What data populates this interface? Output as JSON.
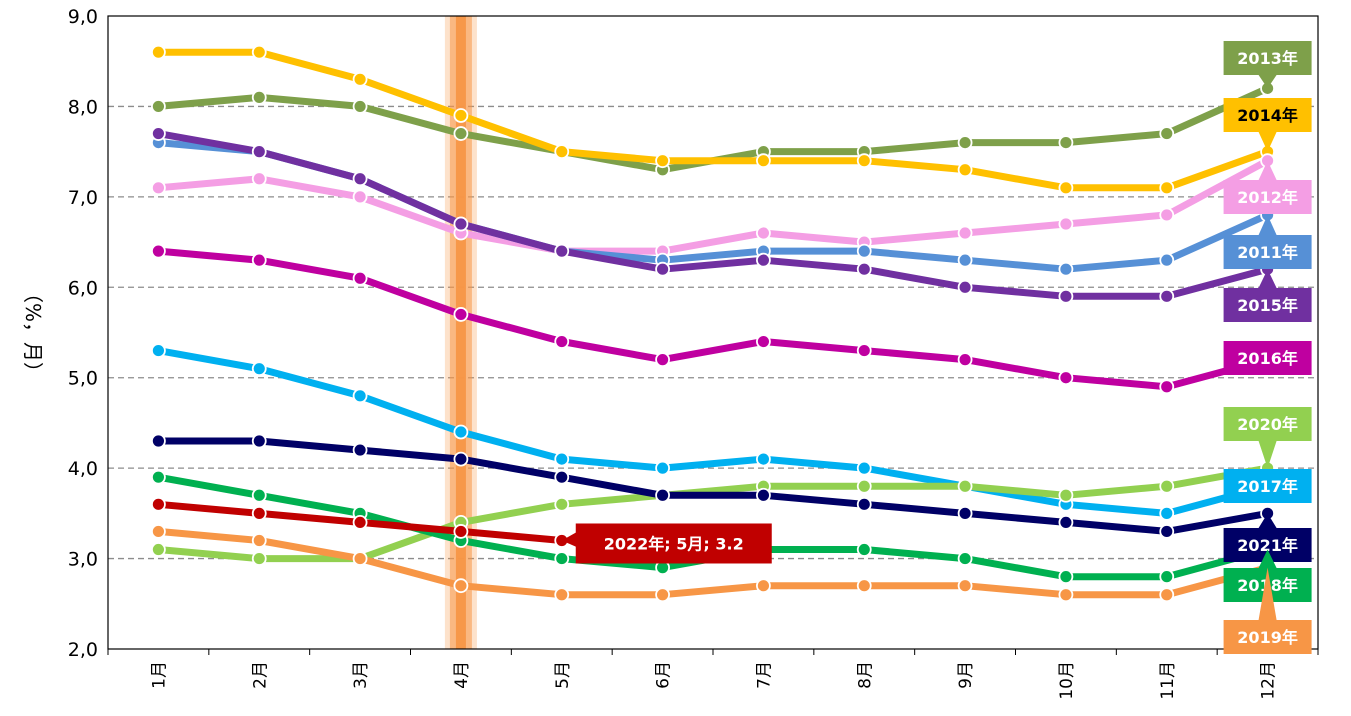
{
  "chart_data": {
    "type": "line",
    "categories": [
      "1月",
      "2月",
      "3月",
      "4月",
      "5月",
      "6月",
      "7月",
      "8月",
      "9月",
      "10月",
      "11月",
      "12月"
    ],
    "y_tick_labels": [
      "2,0",
      "3,0",
      "4,0",
      "5,0",
      "6,0",
      "7,0",
      "8,0",
      "9,0"
    ],
    "ylim": [
      2,
      9
    ],
    "ylabel": "（%，月）",
    "grid": "horizontal dashed",
    "highlight_category": "4月",
    "highlight_color": "#f79646",
    "series": [
      {
        "name": "2013年",
        "color": "#7ea04a",
        "values": [
          8.0,
          8.1,
          8.0,
          7.7,
          7.5,
          7.3,
          7.5,
          7.5,
          7.6,
          7.6,
          7.7,
          8.2
        ]
      },
      {
        "name": "2014年",
        "color": "#ffc000",
        "values": [
          8.6,
          8.6,
          8.3,
          7.9,
          7.5,
          7.4,
          7.4,
          7.4,
          7.3,
          7.1,
          7.1,
          7.5
        ]
      },
      {
        "name": "2012年",
        "color": "#f49ee4",
        "values": [
          7.1,
          7.2,
          7.0,
          6.6,
          6.4,
          6.4,
          6.6,
          6.5,
          6.6,
          6.7,
          6.8,
          7.4
        ]
      },
      {
        "name": "2011年",
        "color": "#5690d6",
        "values": [
          7.6,
          7.5,
          7.2,
          6.7,
          6.4,
          6.3,
          6.4,
          6.4,
          6.3,
          6.2,
          6.3,
          6.8
        ]
      },
      {
        "name": "2015年",
        "color": "#7030a0",
        "values": [
          7.7,
          7.5,
          7.2,
          6.7,
          6.4,
          6.2,
          6.3,
          6.2,
          6.0,
          5.9,
          5.9,
          6.2
        ]
      },
      {
        "name": "2016年",
        "color": "#bf00a0",
        "values": [
          6.4,
          6.3,
          6.1,
          5.7,
          5.4,
          5.2,
          5.4,
          5.3,
          5.2,
          5.0,
          4.9,
          5.2
        ]
      },
      {
        "name": "2017年",
        "color": "#00b0f0",
        "values": [
          5.3,
          5.1,
          4.8,
          4.4,
          4.1,
          4.0,
          4.1,
          4.0,
          3.8,
          3.6,
          3.5,
          3.8
        ]
      },
      {
        "name": "2020年",
        "color": "#92d050",
        "values": [
          3.1,
          3.0,
          3.0,
          3.4,
          3.6,
          3.7,
          3.8,
          3.8,
          3.8,
          3.7,
          3.8,
          4.0
        ]
      },
      {
        "name": "2021年",
        "color": "#000066",
        "values": [
          4.3,
          4.3,
          4.2,
          4.1,
          3.9,
          3.7,
          3.7,
          3.6,
          3.5,
          3.4,
          3.3,
          3.5
        ]
      },
      {
        "name": "2018年",
        "color": "#00b050",
        "values": [
          3.9,
          3.7,
          3.5,
          3.2,
          3.0,
          2.9,
          3.1,
          3.1,
          3.0,
          2.8,
          2.8,
          3.1
        ]
      },
      {
        "name": "2019年",
        "color": "#f79646",
        "values": [
          3.3,
          3.2,
          3.0,
          2.7,
          2.6,
          2.6,
          2.7,
          2.7,
          2.7,
          2.6,
          2.6,
          2.9
        ]
      },
      {
        "name": "2022年",
        "color": "#c00000",
        "values": [
          3.6,
          3.5,
          3.4,
          3.3,
          3.2,
          null,
          null,
          null,
          null,
          null,
          null,
          null
        ]
      }
    ],
    "series_labels": [
      {
        "text": "2013年",
        "series": "2013年",
        "bg": "#7ea04a",
        "fg": "#ffffff"
      },
      {
        "text": "2014年",
        "series": "2014年",
        "bg": "#ffc000",
        "fg": "#000000"
      },
      {
        "text": "2012年",
        "series": "2012年",
        "bg": "#f49ee4",
        "fg": "#ffffff"
      },
      {
        "text": "2011年",
        "series": "2011年",
        "bg": "#5690d6",
        "fg": "#ffffff"
      },
      {
        "text": "2015年",
        "series": "2015年",
        "bg": "#7030a0",
        "fg": "#ffffff"
      },
      {
        "text": "2016年",
        "series": "2016年",
        "bg": "#bf00a0",
        "fg": "#ffffff"
      },
      {
        "text": "2020年",
        "series": "2020年",
        "bg": "#92d050",
        "fg": "#ffffff"
      },
      {
        "text": "2017年",
        "series": "2017年",
        "bg": "#00b0f0",
        "fg": "#ffffff"
      },
      {
        "text": "2021年",
        "series": "2021年",
        "bg": "#000066",
        "fg": "#ffffff"
      },
      {
        "text": "2018年",
        "series": "2018年",
        "bg": "#00b050",
        "fg": "#ffffff"
      },
      {
        "text": "2019年",
        "series": "2019年",
        "bg": "#f79646",
        "fg": "#ffffff"
      }
    ],
    "annotation": {
      "text": "2022年; 5月; 3.2",
      "series": "2022年",
      "category": "5月",
      "bg": "#c00000",
      "fg": "#ffffff"
    }
  }
}
